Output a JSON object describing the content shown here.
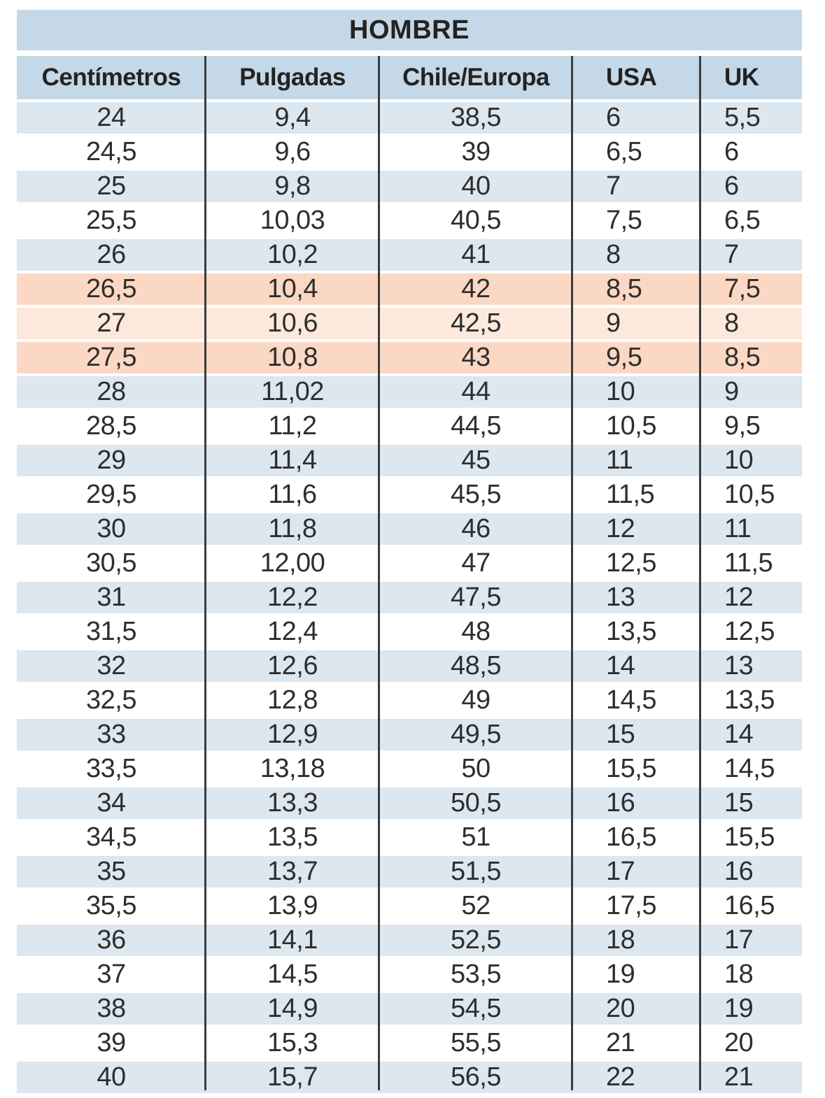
{
  "table": {
    "title": "HOMBRE",
    "columns": [
      {
        "label": "Centímetros",
        "align": "center"
      },
      {
        "label": "Pulgadas",
        "align": "center"
      },
      {
        "label": "Chile/Europa",
        "align": "center"
      },
      {
        "label": "USA",
        "align": "left48"
      },
      {
        "label": "UK",
        "align": "left34"
      }
    ],
    "rows": [
      [
        "24",
        "9,4",
        "38,5",
        "6",
        "5,5"
      ],
      [
        "24,5",
        "9,6",
        "39",
        "6,5",
        "6"
      ],
      [
        "25",
        "9,8",
        "40",
        "7",
        "6"
      ],
      [
        "25,5",
        "10,03",
        "40,5",
        "7,5",
        "6,5"
      ],
      [
        "26",
        "10,2",
        "41",
        "8",
        "7"
      ],
      [
        "26,5",
        "10,4",
        "42",
        "8,5",
        "7,5"
      ],
      [
        "27",
        "10,6",
        "42,5",
        "9",
        "8"
      ],
      [
        "27,5",
        "10,8",
        "43",
        "9,5",
        "8,5"
      ],
      [
        "28",
        "11,02",
        "44",
        "10",
        "9"
      ],
      [
        "28,5",
        "11,2",
        "44,5",
        "10,5",
        "9,5"
      ],
      [
        "29",
        "11,4",
        "45",
        "11",
        "10"
      ],
      [
        "29,5",
        "11,6",
        "45,5",
        "11,5",
        "10,5"
      ],
      [
        "30",
        "11,8",
        "46",
        "12",
        "11"
      ],
      [
        "30,5",
        "12,00",
        "47",
        "12,5",
        "11,5"
      ],
      [
        "31",
        "12,2",
        "47,5",
        "13",
        "12"
      ],
      [
        "31,5",
        "12,4",
        "48",
        "13,5",
        "12,5"
      ],
      [
        "32",
        "12,6",
        "48,5",
        "14",
        "13"
      ],
      [
        "32,5",
        "12,8",
        "49",
        "14,5",
        "13,5"
      ],
      [
        "33",
        "12,9",
        "49,5",
        "15",
        "14"
      ],
      [
        "33,5",
        "13,18",
        "50",
        "15,5",
        "14,5"
      ],
      [
        "34",
        "13,3",
        "50,5",
        "16",
        "15"
      ],
      [
        "34,5",
        "13,5",
        "51",
        "16,5",
        "15,5"
      ],
      [
        "35",
        "13,7",
        "51,5",
        "17",
        "16"
      ],
      [
        "35,5",
        "13,9",
        "52",
        "17,5",
        "16,5"
      ],
      [
        "36",
        "14,1",
        "52,5",
        "18",
        "17"
      ],
      [
        "37",
        "14,5",
        "53,5",
        "19",
        "18"
      ],
      [
        "38",
        "14,9",
        "54,5",
        "20",
        "19"
      ],
      [
        "39",
        "15,3",
        "55,5",
        "21",
        "20"
      ],
      [
        "40",
        "15,7",
        "56,5",
        "22",
        "21"
      ]
    ],
    "row_bands": [
      "blue",
      "white",
      "blue",
      "white",
      "blue",
      "orange-dark",
      "orange-light",
      "orange-dark",
      "blue",
      "white",
      "blue",
      "white",
      "blue",
      "white",
      "blue",
      "white",
      "blue",
      "white",
      "blue",
      "white",
      "blue",
      "white",
      "blue",
      "white",
      "blue",
      "white",
      "blue",
      "white",
      "blue"
    ]
  },
  "colors": {
    "header_bg": "#c4d8e7",
    "row_blue": "#dce7f0",
    "row_white": "#ffffff",
    "row_orange_dark": "#fbd8c3",
    "row_orange_light": "#fce9dc",
    "line_color": "#3b3b3b",
    "text_color": "#2e2e2e"
  }
}
